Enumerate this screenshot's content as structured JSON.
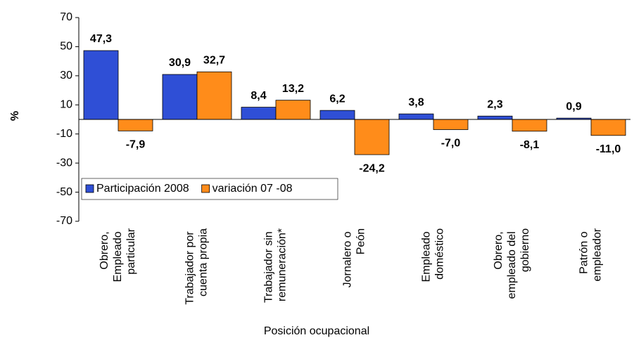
{
  "chart_data": {
    "type": "bar",
    "categories": [
      "Obrero, Empleado particular",
      "Trabajador por cuenta propia",
      "Trabajador sin remuneración*",
      "Jornalero o Peón",
      "Empleado doméstico",
      "Obrero, empleado del gobierno",
      "Patrón o empleador"
    ],
    "series": [
      {
        "name": "Participación 2008",
        "color": "#2f4fd6",
        "label_color": "#1a1a80",
        "values": [
          47.3,
          30.9,
          8.4,
          6.2,
          3.8,
          2.3,
          0.9
        ],
        "value_labels": [
          "47,3",
          "30,9",
          "8,4",
          "6,2",
          "3,8",
          "2,3",
          "0,9"
        ]
      },
      {
        "name": "variación 07 -08",
        "color": "#ff8c1a",
        "label_color": "#ff7f1a",
        "values": [
          -7.9,
          32.7,
          13.2,
          -24.2,
          -7.0,
          -8.1,
          -11.0
        ],
        "value_labels": [
          "-7,9",
          "32,7",
          "13,2",
          "-24,2",
          "-7,0",
          "-8,1",
          "-11,0"
        ]
      }
    ],
    "ylabel": "%",
    "xlabel": "Posición ocupacional",
    "ylim": [
      -70,
      70
    ],
    "yticks": [
      -70,
      -50,
      -30,
      -10,
      10,
      30,
      50,
      70
    ],
    "grid": false,
    "legend": "lower left"
  }
}
